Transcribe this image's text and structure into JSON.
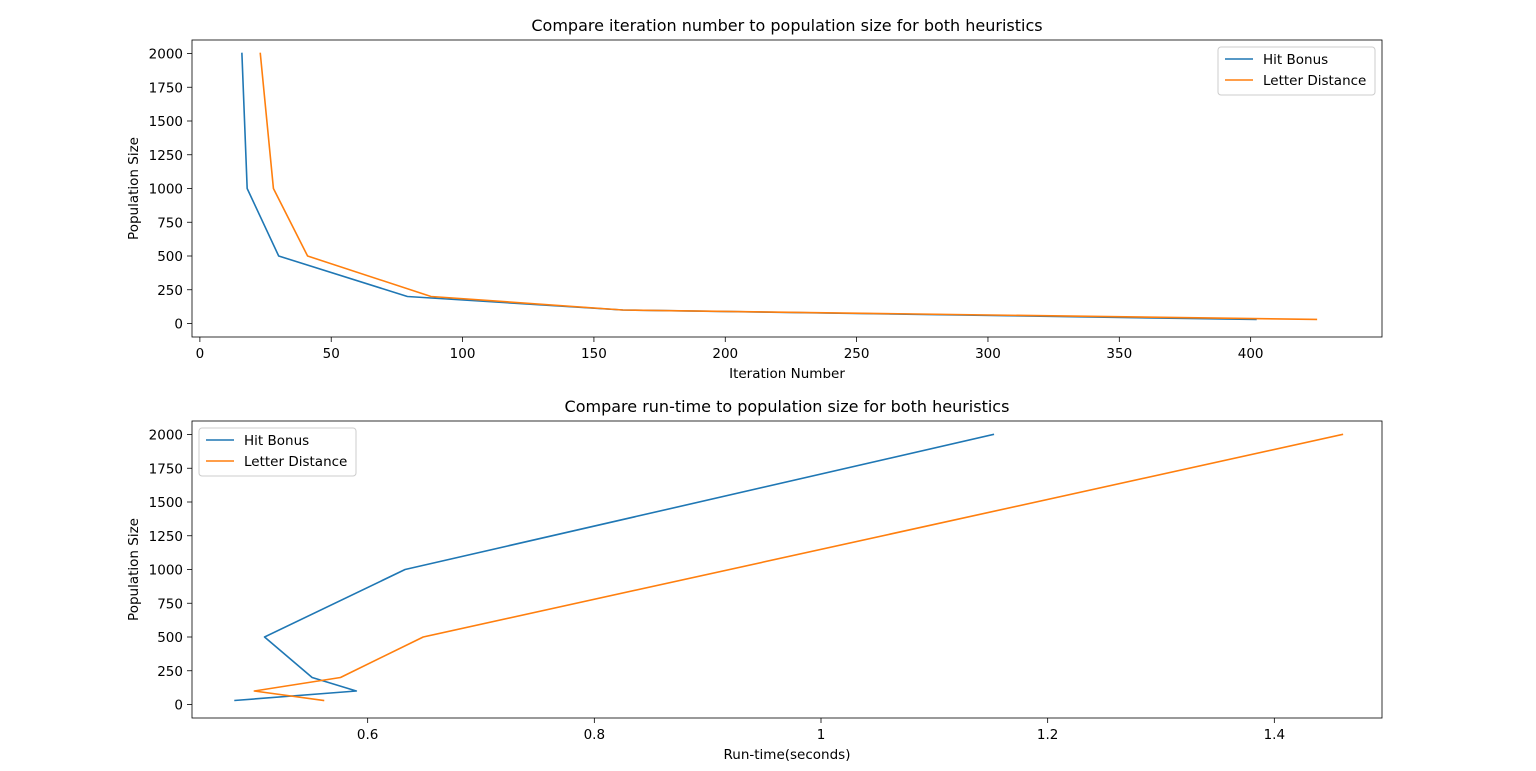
{
  "chart_data": [
    {
      "type": "line",
      "title": "Compare iteration number to population size for both heuristics",
      "xlabel": "Iteration Number",
      "ylabel": "Population Size",
      "xlim": [
        -3,
        450
      ],
      "ylim": [
        -100,
        2100
      ],
      "xticks": [
        0,
        50,
        100,
        150,
        200,
        250,
        300,
        350,
        400
      ],
      "yticks": [
        0,
        250,
        500,
        750,
        1000,
        1250,
        1500,
        1750,
        2000
      ],
      "legend_position": "top-right",
      "grid": false,
      "series": [
        {
          "name": "Hit Bonus",
          "color": "#1f77b4",
          "x": [
            16,
            18,
            30,
            79,
            161,
            402
          ],
          "y": [
            2000,
            1000,
            500,
            200,
            100,
            30
          ]
        },
        {
          "name": "Letter Distance",
          "color": "#ff7f0e",
          "x": [
            23,
            28,
            41,
            88,
            161,
            425
          ],
          "y": [
            2000,
            1000,
            500,
            200,
            100,
            30
          ]
        }
      ]
    },
    {
      "type": "line",
      "title": "Compare run-time to population size for both heuristics",
      "xlabel": "Run-time(seconds)",
      "ylabel": "Population Size",
      "xlim": [
        0.445,
        1.495
      ],
      "ylim": [
        -100,
        2100
      ],
      "xticks": [
        0.6,
        0.8,
        1.0,
        1.2,
        1.4
      ],
      "yticks": [
        0,
        250,
        500,
        750,
        1000,
        1250,
        1500,
        1750,
        2000
      ],
      "legend_position": "top-left",
      "grid": false,
      "series": [
        {
          "name": "Hit Bonus",
          "color": "#1f77b4",
          "x": [
            1.152,
            0.633,
            0.509,
            0.551,
            0.59,
            0.483
          ],
          "y": [
            2000,
            1000,
            500,
            200,
            100,
            30
          ]
        },
        {
          "name": "Letter Distance",
          "color": "#ff7f0e",
          "x": [
            1.46,
            0.649,
            0.576,
            0.5,
            0.561
          ],
          "y": [
            2000,
            500,
            200,
            100,
            30
          ]
        }
      ]
    }
  ]
}
